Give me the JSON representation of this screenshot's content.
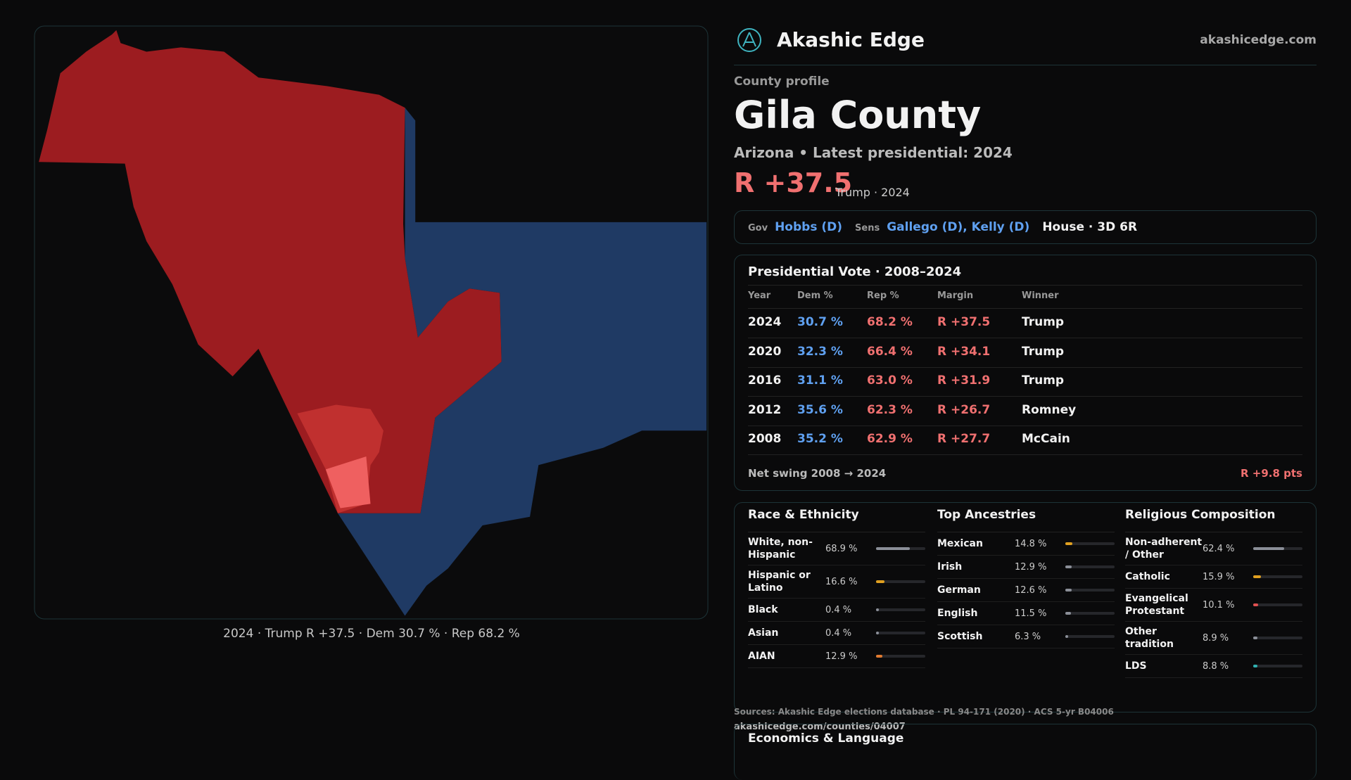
{
  "map": {
    "caption": "2024 · Trump R +37.5 · Dem 30.7 % · Rep 68.2 %"
  },
  "header": {
    "brand": "Akashic Edge",
    "site": "akashicedge.com"
  },
  "profile": {
    "label": "County profile",
    "name": "Gila County",
    "subtitle": "Arizona • Latest presidential: 2024",
    "margin": "R +37.5",
    "margin_note": "Trump · 2024"
  },
  "officials": {
    "gov_label": "Gov",
    "gov": "Hobbs (D)",
    "sens_label": "Sens",
    "sens": "Gallego (D), Kelly (D)",
    "house": "House · 3D 6R"
  },
  "presidential": {
    "title": "Presidential Vote · 2008–2024",
    "columns": [
      "Year",
      "Dem %",
      "Rep %",
      "Margin",
      "Winner"
    ],
    "rows": [
      [
        "2024",
        "30.7 %",
        "68.2 %",
        "R +37.5",
        "Trump"
      ],
      [
        "2020",
        "32.3 %",
        "66.4 %",
        "R +34.1",
        "Trump"
      ],
      [
        "2016",
        "31.1 %",
        "63.0 %",
        "R +31.9",
        "Trump"
      ],
      [
        "2012",
        "35.6 %",
        "62.3 %",
        "R +26.7",
        "Romney"
      ],
      [
        "2008",
        "35.2 %",
        "62.9 %",
        "R +27.7",
        "McCain"
      ]
    ],
    "footer_label": "Net swing 2008 → 2024",
    "footer_value": "R +9.8 pts"
  },
  "demographics": [
    {
      "title": "Race & Ethnicity",
      "items": [
        {
          "label": "White, non-Hispanic",
          "value": 68.9,
          "value_label": "68.9 %",
          "color": "#8b8f98"
        },
        {
          "label": "Hispanic or Latino",
          "value": 16.6,
          "value_label": "16.6 %",
          "color": "#e0a020"
        },
        {
          "label": "Black",
          "value": 0.4,
          "value_label": "0.4 %",
          "color": "#8b8f98"
        },
        {
          "label": "Asian",
          "value": 0.4,
          "value_label": "0.4 %",
          "color": "#8b8f98"
        },
        {
          "label": "AIAN",
          "value": 12.9,
          "value_label": "12.9 %",
          "color": "#e07a30"
        }
      ]
    },
    {
      "title": "Top Ancestries",
      "items": [
        {
          "label": "Mexican",
          "value": 14.8,
          "value_label": "14.8 %",
          "color": "#e0a020"
        },
        {
          "label": "Irish",
          "value": 12.9,
          "value_label": "12.9 %",
          "color": "#8b8f98"
        },
        {
          "label": "German",
          "value": 12.6,
          "value_label": "12.6 %",
          "color": "#8b8f98"
        },
        {
          "label": "English",
          "value": 11.5,
          "value_label": "11.5 %",
          "color": "#8b8f98"
        },
        {
          "label": "Scottish",
          "value": 6.3,
          "value_label": "6.3 %",
          "color": "#8b8f98"
        }
      ]
    },
    {
      "title": "Religious Composition",
      "items": [
        {
          "label": "Non-adherent / Other",
          "value": 62.4,
          "value_label": "62.4 %",
          "color": "#8b8f98"
        },
        {
          "label": "Catholic",
          "value": 15.9,
          "value_label": "15.9 %",
          "color": "#e0a020"
        },
        {
          "label": "Evangelical Protestant",
          "value": 10.1,
          "value_label": "10.1 %",
          "color": "#e05050"
        },
        {
          "label": "Other tradition",
          "value": 8.9,
          "value_label": "8.9 %",
          "color": "#8b8f98"
        },
        {
          "label": "LDS",
          "value": 8.8,
          "value_label": "8.8 %",
          "color": "#30b0b0"
        }
      ]
    }
  ],
  "sources": [
    "Sources: Akashic Edge elections database · PL 94-171 (2020) · ACS 5-yr B04006",
    "akashicedge.com/counties/04007"
  ],
  "economics": {
    "title": "Economics & Language"
  }
}
